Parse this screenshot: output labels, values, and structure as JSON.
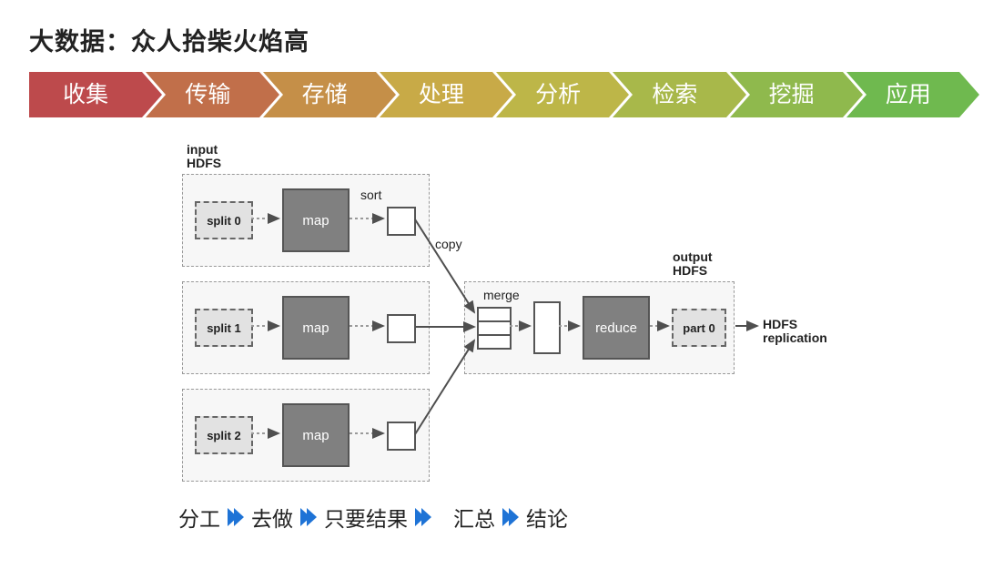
{
  "title": "大数据：众人拾柴火焰高",
  "arrows": {
    "items": [
      {
        "label": "收集",
        "color": "#bd4a4c"
      },
      {
        "label": "传输",
        "color": "#c16f4a"
      },
      {
        "label": "存储",
        "color": "#c58f48"
      },
      {
        "label": "处理",
        "color": "#c8aa47"
      },
      {
        "label": "分析",
        "color": "#bdb648"
      },
      {
        "label": "检索",
        "color": "#a8b84a"
      },
      {
        "label": "挖掘",
        "color": "#8fb94d"
      },
      {
        "label": "应用",
        "color": "#6fb94f"
      }
    ]
  },
  "diagram": {
    "input_label": "input\nHDFS",
    "output_label": "output\nHDFS",
    "hdfs_out": "HDFS\nreplication",
    "sort": "sort",
    "copy": "copy",
    "merge": "merge",
    "split0": "split 0",
    "split1": "split 1",
    "split2": "split 2",
    "map": "map",
    "reduce": "reduce",
    "part0": "part 0",
    "arrow_color": "#4f4f4f",
    "dash_color": "#9a9a9a"
  },
  "bottom": {
    "steps": [
      "分工",
      "去做",
      "只要结果",
      "汇总",
      "结论"
    ],
    "chev_color": "#1e73d6"
  }
}
